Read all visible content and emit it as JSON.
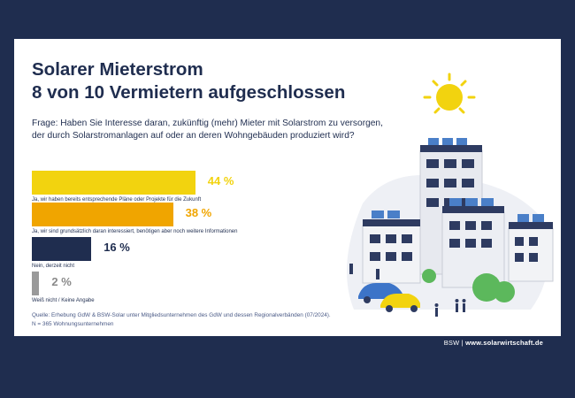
{
  "title_line1": "Solarer Mieterstrom",
  "title_line2": "8 von 10 Vermietern aufgeschlossen",
  "question": "Frage: Haben Sie Interesse daran, zukünftig (mehr) Mieter mit Solarstrom zu versorgen, der durch Solarstromanlagen auf oder an deren Wohngebäuden produziert wird?",
  "source_line1": "Quelle: Erhebung GdW & BSW-Solar unter Mitgliedsunternehmen des GdW und dessen Regionalverbänden (07/2024).",
  "source_line2": "N = 365 Wohnungsunternehmen",
  "footer_brand": "BSW",
  "footer_sep": " | ",
  "footer_url": "www.solarwirtschaft.de",
  "colors": {
    "navy": "#1f2d4f",
    "yellow": "#f2d30f",
    "orange": "#f0a500",
    "gray": "#9a9a9a"
  },
  "chart_data": {
    "type": "bar",
    "orientation": "horizontal",
    "categories": [
      "Ja, wir haben bereits entsprechende Pläne oder Projekte für die Zukunft",
      "Ja, wir sind grundsätzlich daran interessiert, benötigen aber noch weitere Informationen",
      "Nein, derzeit nicht",
      "Weiß nicht / Keine Angabe"
    ],
    "values": [
      44,
      38,
      16,
      2
    ],
    "value_labels": [
      "44 %",
      "38 %",
      "16 %",
      "2 %"
    ],
    "colors": [
      "#f2d30f",
      "#f0a500",
      "#1f2d4f",
      "#9a9a9a"
    ],
    "xlim": [
      0,
      100
    ],
    "grid": false
  }
}
